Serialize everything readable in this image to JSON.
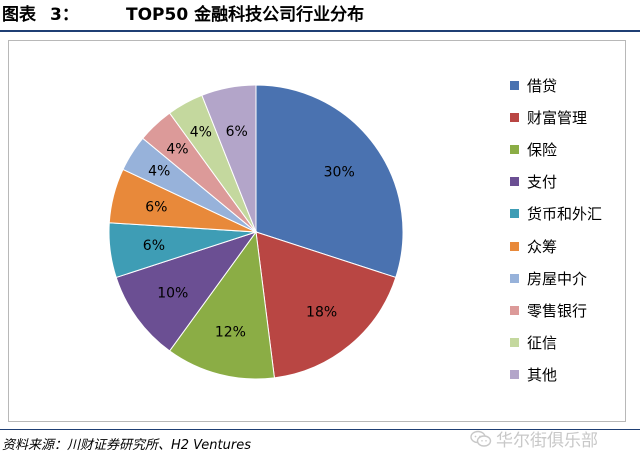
{
  "figure": {
    "label": "图表",
    "number": "3：",
    "title": "TOP50 金融科技公司行业分布"
  },
  "source": "资料来源：川财证券研究所、H2 Ventures",
  "watermark": "华尔街俱乐部",
  "chart_data": {
    "type": "pie",
    "title": "",
    "legend_position": "right",
    "slices": [
      {
        "label": "借贷",
        "value": 30,
        "value_label": "30%",
        "color": "#4a72b0"
      },
      {
        "label": "财富管理",
        "value": 18,
        "value_label": "18%",
        "color": "#b94643"
      },
      {
        "label": "保险",
        "value": 12,
        "value_label": "12%",
        "color": "#8bad45"
      },
      {
        "label": "支付",
        "value": 10,
        "value_label": "10%",
        "color": "#6b4f93"
      },
      {
        "label": "货币和外汇",
        "value": 6,
        "value_label": "6%",
        "color": "#3e9db5"
      },
      {
        "label": "众筹",
        "value": 6,
        "value_label": "6%",
        "color": "#e8893a"
      },
      {
        "label": "房屋中介",
        "value": 4,
        "value_label": "4%",
        "color": "#97b2da"
      },
      {
        "label": "零售银行",
        "value": 4,
        "value_label": "4%",
        "color": "#dc9a99"
      },
      {
        "label": "征信",
        "value": 4,
        "value_label": "4%",
        "color": "#c4d89e"
      },
      {
        "label": "其他",
        "value": 6,
        "value_label": "6%",
        "color": "#b3a5c9"
      }
    ]
  }
}
